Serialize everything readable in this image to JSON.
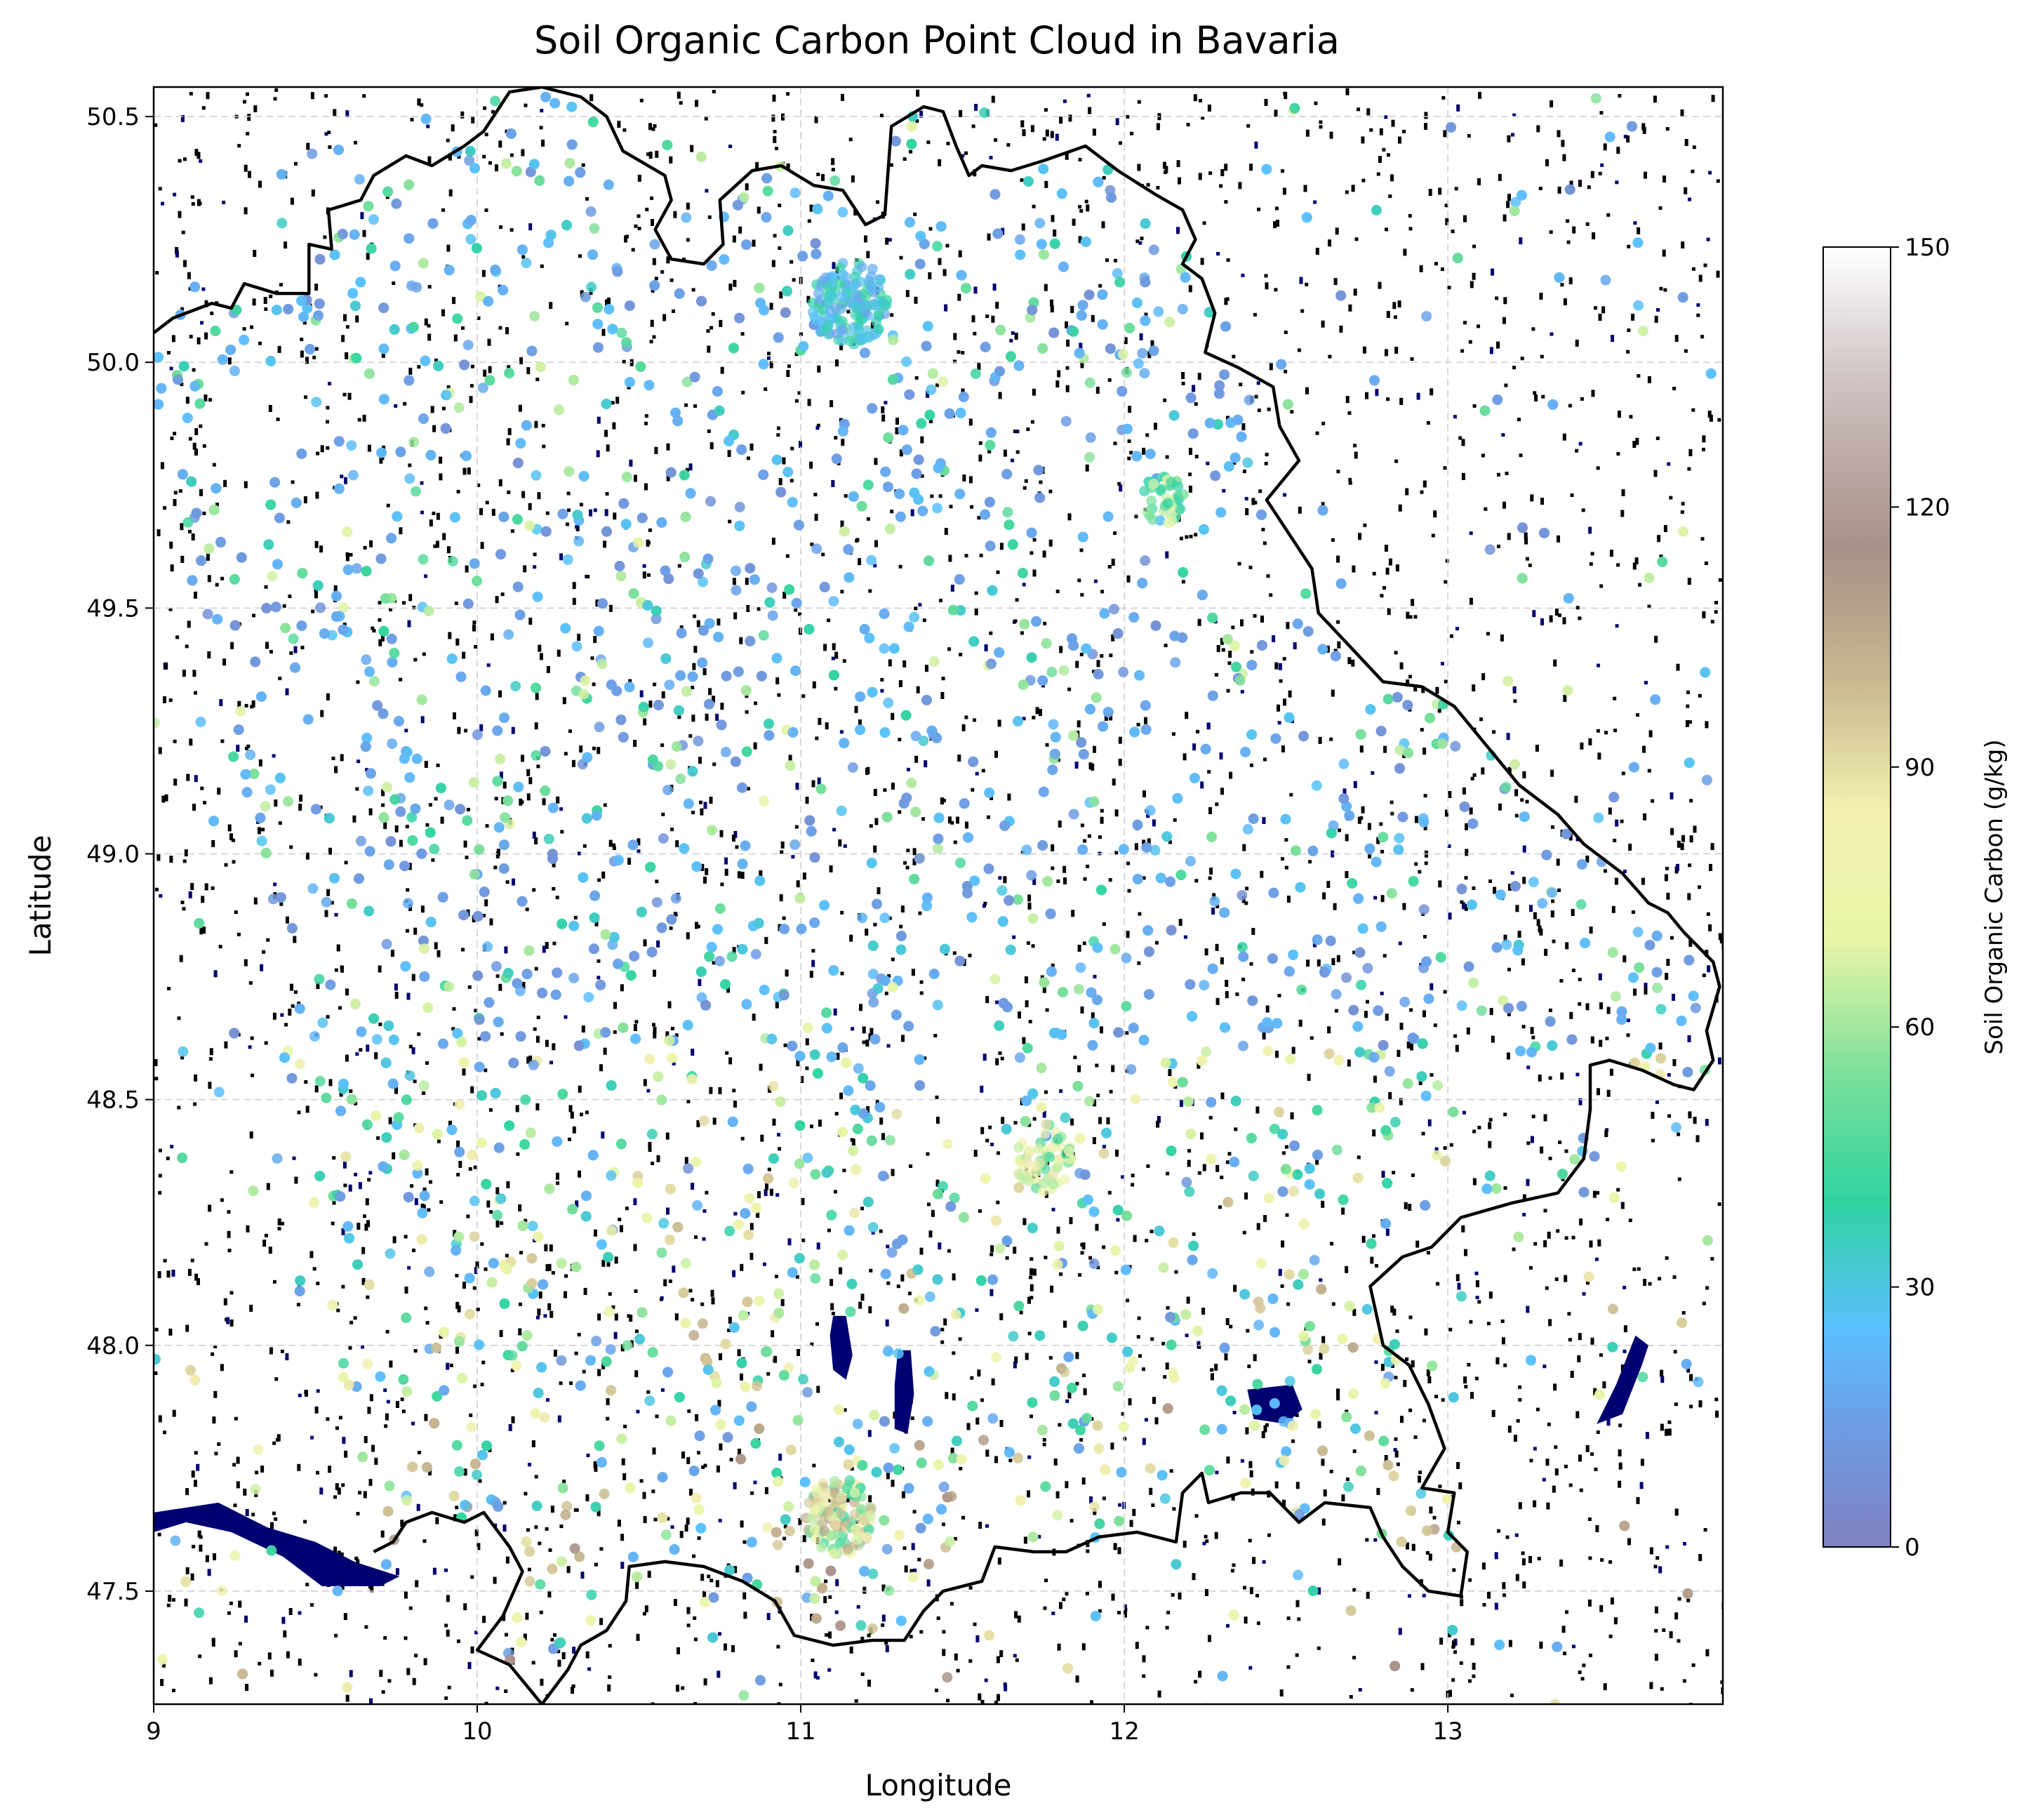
{
  "chart_data": {
    "type": "scatter",
    "title": "Soil Organic Carbon Point Cloud in Bavaria",
    "xlabel": "Longitude",
    "ylabel": "Latitude",
    "xlim": [
      9.0,
      13.85
    ],
    "ylim": [
      47.27,
      50.56
    ],
    "x_ticks": [
      9,
      10,
      11,
      12,
      13
    ],
    "y_ticks": [
      47.5,
      48.0,
      48.5,
      49.0,
      49.5,
      50.0,
      50.5
    ],
    "x_tick_labels": [
      "9",
      "10",
      "11",
      "12",
      "13"
    ],
    "y_tick_labels": [
      "47.5",
      "48.0",
      "48.5",
      "49.0",
      "49.5",
      "50.0",
      "50.5"
    ],
    "grid": true,
    "colorbar": {
      "label": "Soil Organic Carbon (g/kg)",
      "range": [
        0,
        150
      ],
      "ticks": [
        0,
        30,
        60,
        90,
        120,
        150
      ],
      "tick_labels": [
        "0",
        "30",
        "60",
        "90",
        "120",
        "150"
      ],
      "colormap_stops": [
        {
          "value": 0,
          "color": "#8080c0"
        },
        {
          "value": 15,
          "color": "#6b9fe6"
        },
        {
          "value": 25,
          "color": "#5cbfff"
        },
        {
          "value": 40,
          "color": "#2fd3a0"
        },
        {
          "value": 55,
          "color": "#7fe09a"
        },
        {
          "value": 70,
          "color": "#e8f5a8"
        },
        {
          "value": 85,
          "color": "#f2f0b0"
        },
        {
          "value": 100,
          "color": "#c8b890"
        },
        {
          "value": 115,
          "color": "#a89088"
        },
        {
          "value": 135,
          "color": "#d0c4c4"
        },
        {
          "value": 150,
          "color": "#ffffff"
        }
      ]
    },
    "background_colors": {
      "land_noise": "#000000",
      "water": "#000070"
    },
    "boundary": {
      "name": "Bavaria border",
      "color": "#000000",
      "points": [
        [
          9.0,
          50.06
        ],
        [
          9.06,
          50.09
        ],
        [
          9.18,
          50.12
        ],
        [
          9.24,
          50.11
        ],
        [
          9.28,
          50.16
        ],
        [
          9.38,
          50.14
        ],
        [
          9.48,
          50.14
        ],
        [
          9.48,
          50.24
        ],
        [
          9.55,
          50.23
        ],
        [
          9.54,
          50.31
        ],
        [
          9.64,
          50.33
        ],
        [
          9.68,
          50.38
        ],
        [
          9.78,
          50.42
        ],
        [
          9.86,
          50.4
        ],
        [
          9.96,
          50.44
        ],
        [
          10.02,
          50.47
        ],
        [
          10.1,
          50.55
        ],
        [
          10.2,
          50.56
        ],
        [
          10.32,
          50.54
        ],
        [
          10.4,
          50.5
        ],
        [
          10.45,
          50.43
        ],
        [
          10.58,
          50.38
        ],
        [
          10.6,
          50.33
        ],
        [
          10.55,
          50.27
        ],
        [
          10.6,
          50.21
        ],
        [
          10.7,
          50.2
        ],
        [
          10.76,
          50.24
        ],
        [
          10.75,
          50.33
        ],
        [
          10.85,
          50.39
        ],
        [
          10.94,
          50.4
        ],
        [
          11.04,
          50.36
        ],
        [
          11.13,
          50.35
        ],
        [
          11.2,
          50.28
        ],
        [
          11.26,
          50.3
        ],
        [
          11.27,
          50.39
        ],
        [
          11.28,
          50.48
        ],
        [
          11.38,
          50.52
        ],
        [
          11.44,
          50.51
        ],
        [
          11.48,
          50.44
        ],
        [
          11.52,
          50.38
        ],
        [
          11.56,
          50.4
        ],
        [
          11.65,
          50.39
        ],
        [
          11.75,
          50.41
        ],
        [
          11.88,
          50.44
        ],
        [
          11.98,
          50.39
        ],
        [
          12.1,
          50.34
        ],
        [
          12.18,
          50.31
        ],
        [
          12.22,
          50.25
        ],
        [
          12.18,
          50.2
        ],
        [
          12.24,
          50.17
        ],
        [
          12.28,
          50.1
        ],
        [
          12.25,
          50.02
        ],
        [
          12.35,
          49.99
        ],
        [
          12.46,
          49.95
        ],
        [
          12.48,
          49.87
        ],
        [
          12.54,
          49.8
        ],
        [
          12.44,
          49.72
        ],
        [
          12.5,
          49.66
        ],
        [
          12.58,
          49.58
        ],
        [
          12.6,
          49.49
        ],
        [
          12.7,
          49.42
        ],
        [
          12.8,
          49.35
        ],
        [
          12.92,
          49.34
        ],
        [
          13.02,
          49.3
        ],
        [
          13.12,
          49.22
        ],
        [
          13.22,
          49.14
        ],
        [
          13.34,
          49.08
        ],
        [
          13.42,
          49.02
        ],
        [
          13.54,
          48.96
        ],
        [
          13.62,
          48.9
        ],
        [
          13.68,
          48.88
        ],
        [
          13.73,
          48.84
        ],
        [
          13.82,
          48.78
        ],
        [
          13.84,
          48.73
        ],
        [
          13.8,
          48.64
        ],
        [
          13.82,
          48.58
        ],
        [
          13.76,
          48.52
        ],
        [
          13.7,
          48.53
        ],
        [
          13.6,
          48.56
        ],
        [
          13.5,
          48.58
        ],
        [
          13.44,
          48.57
        ],
        [
          13.44,
          48.48
        ],
        [
          13.42,
          48.38
        ],
        [
          13.34,
          48.31
        ],
        [
          13.2,
          48.29
        ],
        [
          13.04,
          48.26
        ],
        [
          12.95,
          48.2
        ],
        [
          12.86,
          48.18
        ],
        [
          12.76,
          48.12
        ],
        [
          12.8,
          48.0
        ],
        [
          12.88,
          47.96
        ],
        [
          12.94,
          47.88
        ],
        [
          12.99,
          47.79
        ],
        [
          12.92,
          47.71
        ],
        [
          13.02,
          47.7
        ],
        [
          13.0,
          47.62
        ],
        [
          13.06,
          47.58
        ],
        [
          13.04,
          47.49
        ],
        [
          12.94,
          47.5
        ],
        [
          12.86,
          47.55
        ],
        [
          12.8,
          47.61
        ],
        [
          12.76,
          47.67
        ],
        [
          12.62,
          47.68
        ],
        [
          12.54,
          47.64
        ],
        [
          12.45,
          47.7
        ],
        [
          12.36,
          47.7
        ],
        [
          12.26,
          47.68
        ],
        [
          12.24,
          47.74
        ],
        [
          12.18,
          47.7
        ],
        [
          12.16,
          47.6
        ],
        [
          12.04,
          47.62
        ],
        [
          11.92,
          47.61
        ],
        [
          11.82,
          47.58
        ],
        [
          11.72,
          47.58
        ],
        [
          11.6,
          47.59
        ],
        [
          11.56,
          47.52
        ],
        [
          11.44,
          47.5
        ],
        [
          11.38,
          47.46
        ],
        [
          11.32,
          47.4
        ],
        [
          11.22,
          47.4
        ],
        [
          11.1,
          47.39
        ],
        [
          10.98,
          47.41
        ],
        [
          10.92,
          47.48
        ],
        [
          10.82,
          47.52
        ],
        [
          10.7,
          47.55
        ],
        [
          10.58,
          47.56
        ],
        [
          10.47,
          47.55
        ],
        [
          10.46,
          47.48
        ],
        [
          10.4,
          47.42
        ],
        [
          10.32,
          47.39
        ],
        [
          10.28,
          47.34
        ],
        [
          10.2,
          47.27
        ],
        [
          10.1,
          47.35
        ],
        [
          10.0,
          47.38
        ],
        [
          10.08,
          47.45
        ],
        [
          10.14,
          47.54
        ],
        [
          10.1,
          47.59
        ],
        [
          10.02,
          47.66
        ],
        [
          9.96,
          47.64
        ],
        [
          9.86,
          47.66
        ],
        [
          9.78,
          47.64
        ],
        [
          9.74,
          47.6
        ],
        [
          9.68,
          47.58
        ]
      ]
    },
    "water_bodies": [
      {
        "name": "Lake Constance",
        "points": [
          [
            9.0,
            47.66
          ],
          [
            9.2,
            47.68
          ],
          [
            9.35,
            47.63
          ],
          [
            9.5,
            47.6
          ],
          [
            9.62,
            47.56
          ],
          [
            9.76,
            47.53
          ],
          [
            9.7,
            47.51
          ],
          [
            9.52,
            47.51
          ],
          [
            9.4,
            47.57
          ],
          [
            9.24,
            47.62
          ],
          [
            9.1,
            47.64
          ],
          [
            9.0,
            47.62
          ]
        ]
      },
      {
        "name": "Ammersee",
        "points": [
          [
            11.1,
            48.06
          ],
          [
            11.14,
            48.06
          ],
          [
            11.16,
            47.98
          ],
          [
            11.14,
            47.93
          ],
          [
            11.1,
            47.95
          ],
          [
            11.09,
            48.02
          ]
        ]
      },
      {
        "name": "Starnberger See",
        "points": [
          [
            11.3,
            47.99
          ],
          [
            11.34,
            47.99
          ],
          [
            11.35,
            47.9
          ],
          [
            11.33,
            47.82
          ],
          [
            11.29,
            47.83
          ],
          [
            11.29,
            47.92
          ]
        ]
      },
      {
        "name": "Chiemsee",
        "points": [
          [
            12.38,
            47.91
          ],
          [
            12.52,
            47.92
          ],
          [
            12.55,
            47.87
          ],
          [
            12.5,
            47.84
          ],
          [
            12.4,
            47.85
          ]
        ]
      },
      {
        "name": "Lake east",
        "points": [
          [
            13.54,
            47.86
          ],
          [
            13.6,
            47.96
          ],
          [
            13.62,
            48.0
          ],
          [
            13.58,
            48.02
          ],
          [
            13.52,
            47.92
          ],
          [
            13.46,
            47.84
          ]
        ]
      }
    ],
    "point_count": 4200
  }
}
